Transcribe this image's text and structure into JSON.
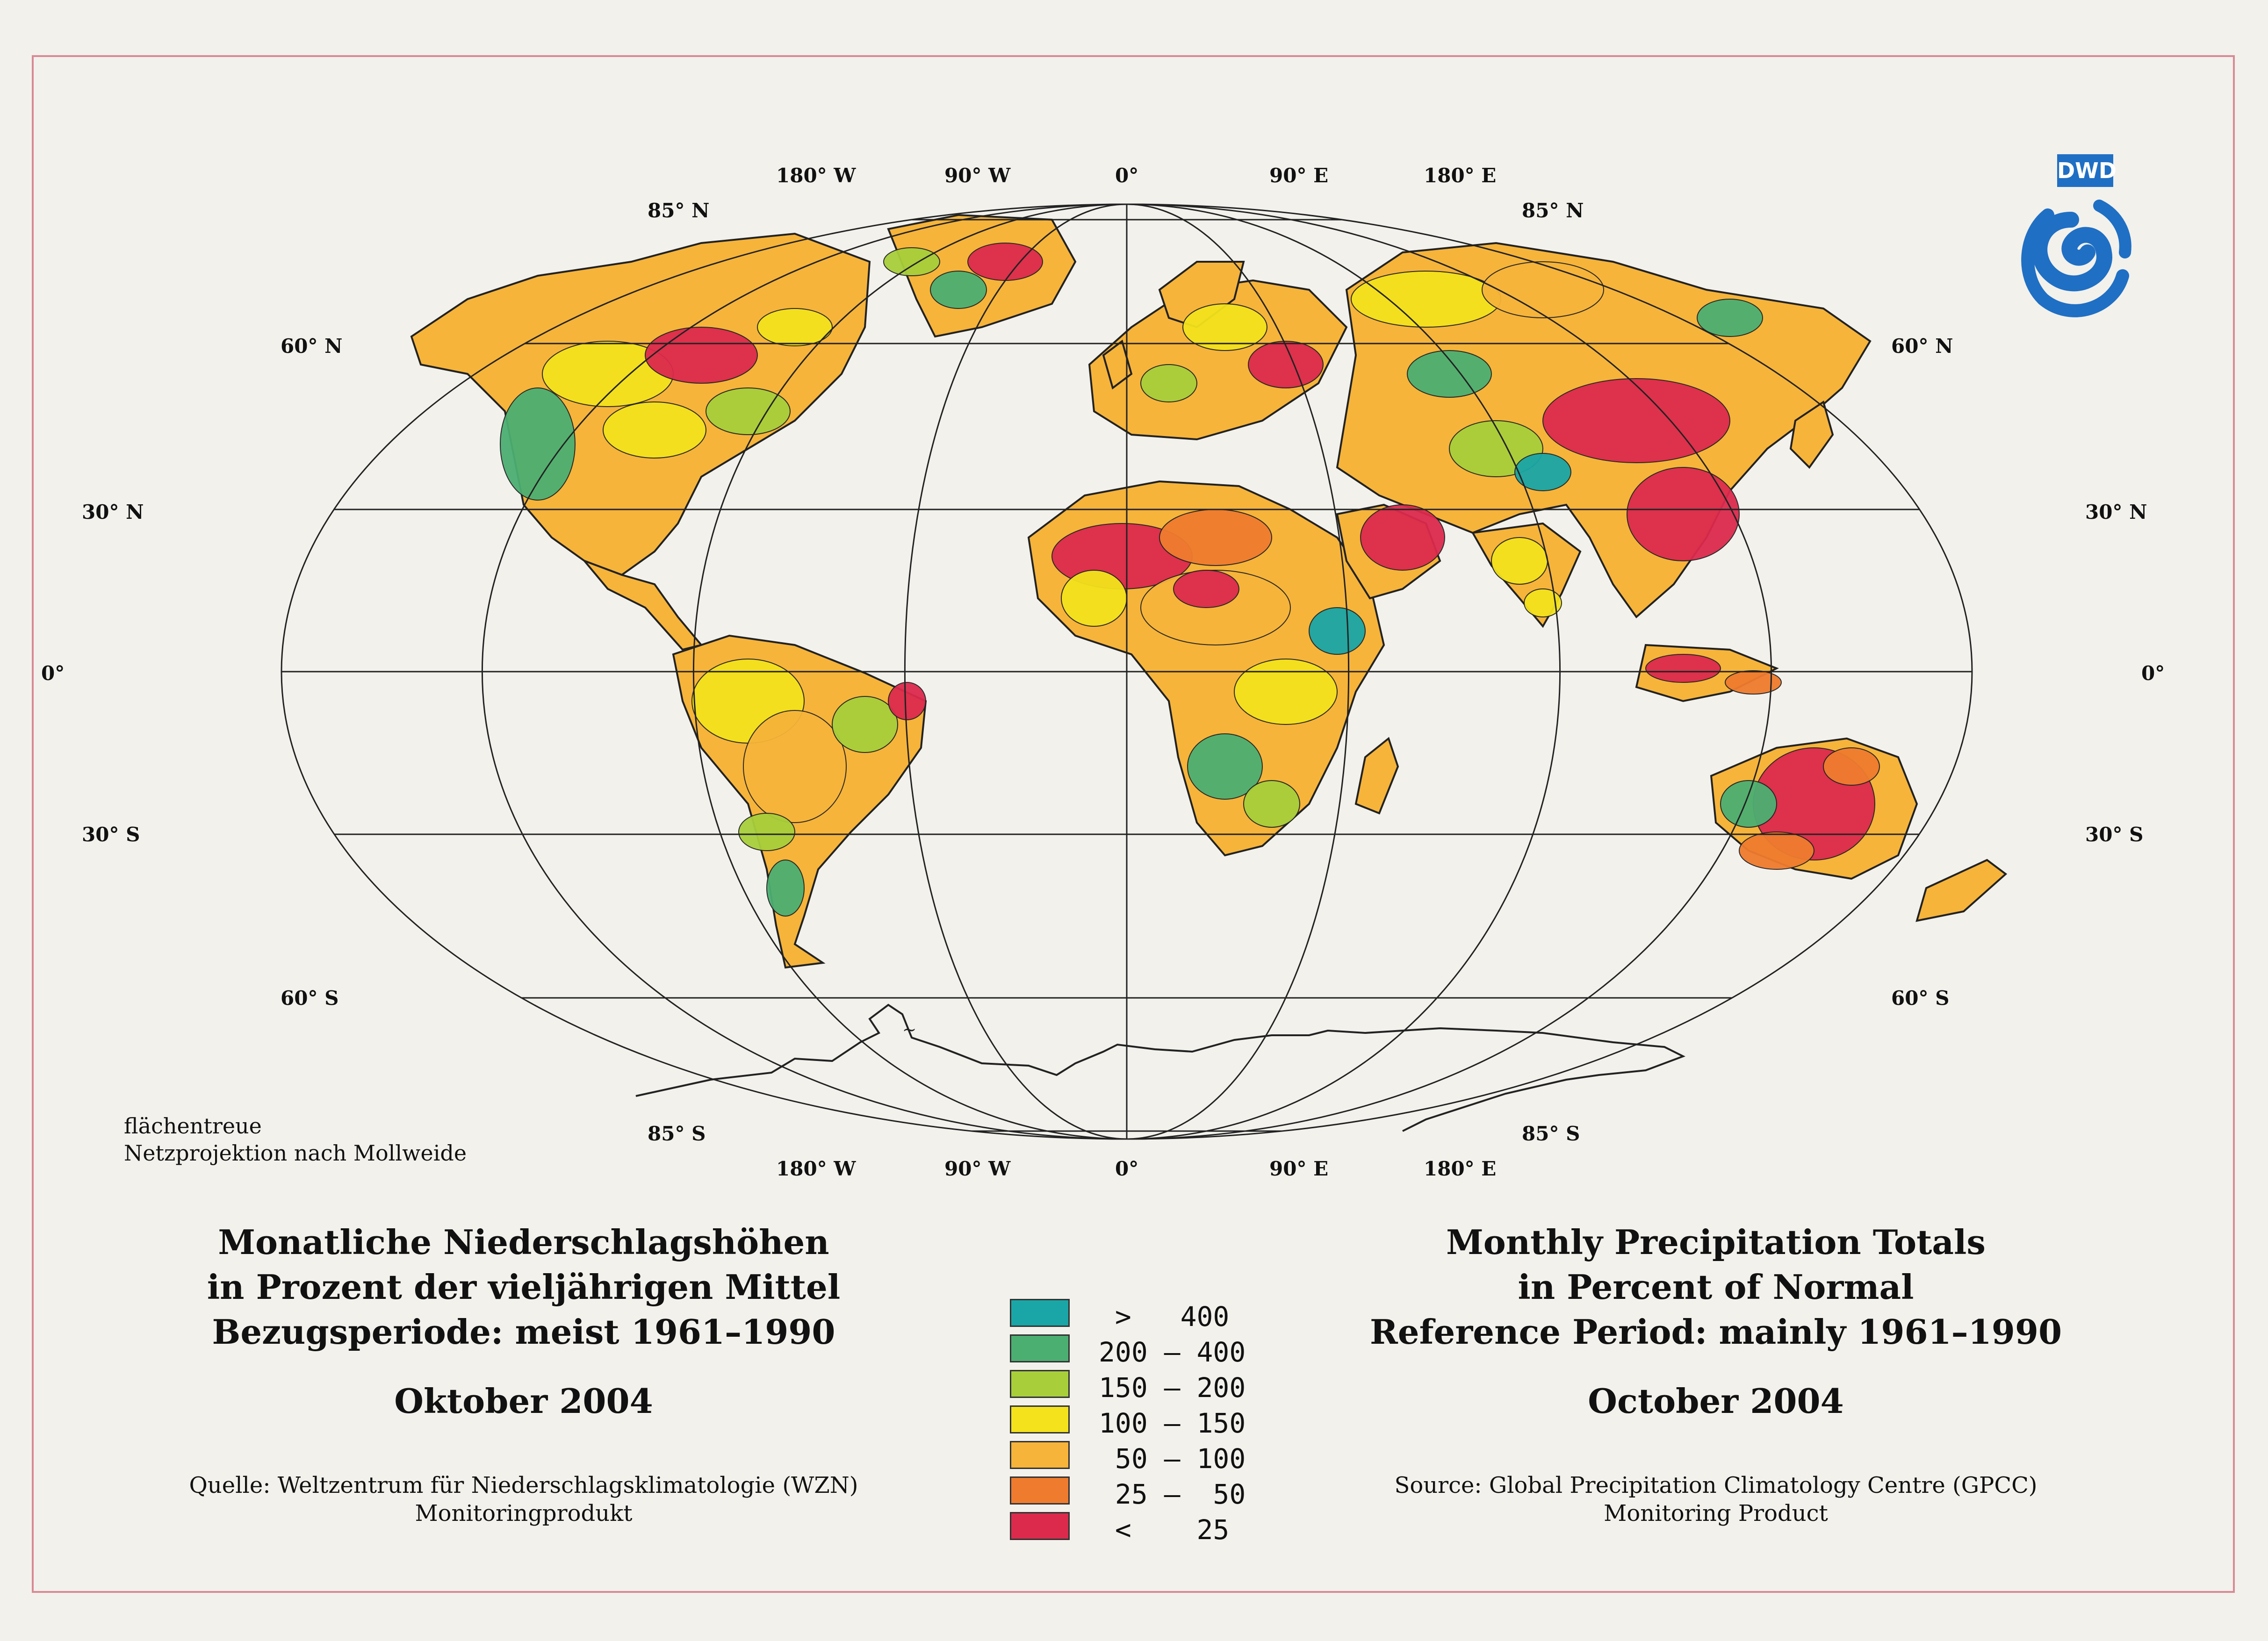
{
  "logo": {
    "text": "DWD",
    "color": "#1f6fc4"
  },
  "graticule_labels": {
    "top_lon": [
      "180° W",
      "90° W",
      "0°",
      "90° E",
      "180° E"
    ],
    "bottom_lon": [
      "180° W",
      "90° W",
      "0°",
      "90° E",
      "180° E"
    ],
    "lat_left": [
      "85° N",
      "60° N",
      "30° N",
      "0°",
      "30° S",
      "60° S",
      "85° S"
    ],
    "lat_right": [
      "85° N",
      "60° N",
      "30° N",
      "0°",
      "30° S",
      "60° S",
      "85° S"
    ]
  },
  "projection_note": {
    "line1": "flächentreue",
    "line2": "Netzprojektion nach Mollweide"
  },
  "title_de": {
    "line1": "Monatliche Niederschlagshöhen",
    "line2": "in Prozent der vieljährigen Mittel",
    "line3": "Bezugsperiode: meist 1961–1990",
    "month": "Oktober 2004"
  },
  "title_en": {
    "line1": "Monthly Precipitation Totals",
    "line2": "in Percent of Normal",
    "line3": "Reference Period: mainly 1961–1990",
    "month": "October 2004"
  },
  "source_de": {
    "line1": "Quelle: Weltzentrum für Niederschlagsklimatologie (WZN)",
    "line2": "Monitoringprodukt"
  },
  "source_en": {
    "line1": "Source: Global Precipitation Climatology Centre (GPCC)",
    "line2": "Monitoring Product"
  },
  "legend": [
    {
      "label": " >   400",
      "color": "#1aa6a6"
    },
    {
      "label": "200 – 400",
      "color": "#4caf72"
    },
    {
      "label": "150 – 200",
      "color": "#a8cf3a"
    },
    {
      "label": "100 – 150",
      "color": "#f3e21c"
    },
    {
      "label": " 50 – 100",
      "color": "#f6b43a"
    },
    {
      "label": " 25 –  50",
      "color": "#ef7c2e"
    },
    {
      "label": " <    25",
      "color": "#dc2a4d"
    }
  ],
  "map": {
    "ocean_color": "#f2f1ec",
    "line_color": "#222222"
  }
}
